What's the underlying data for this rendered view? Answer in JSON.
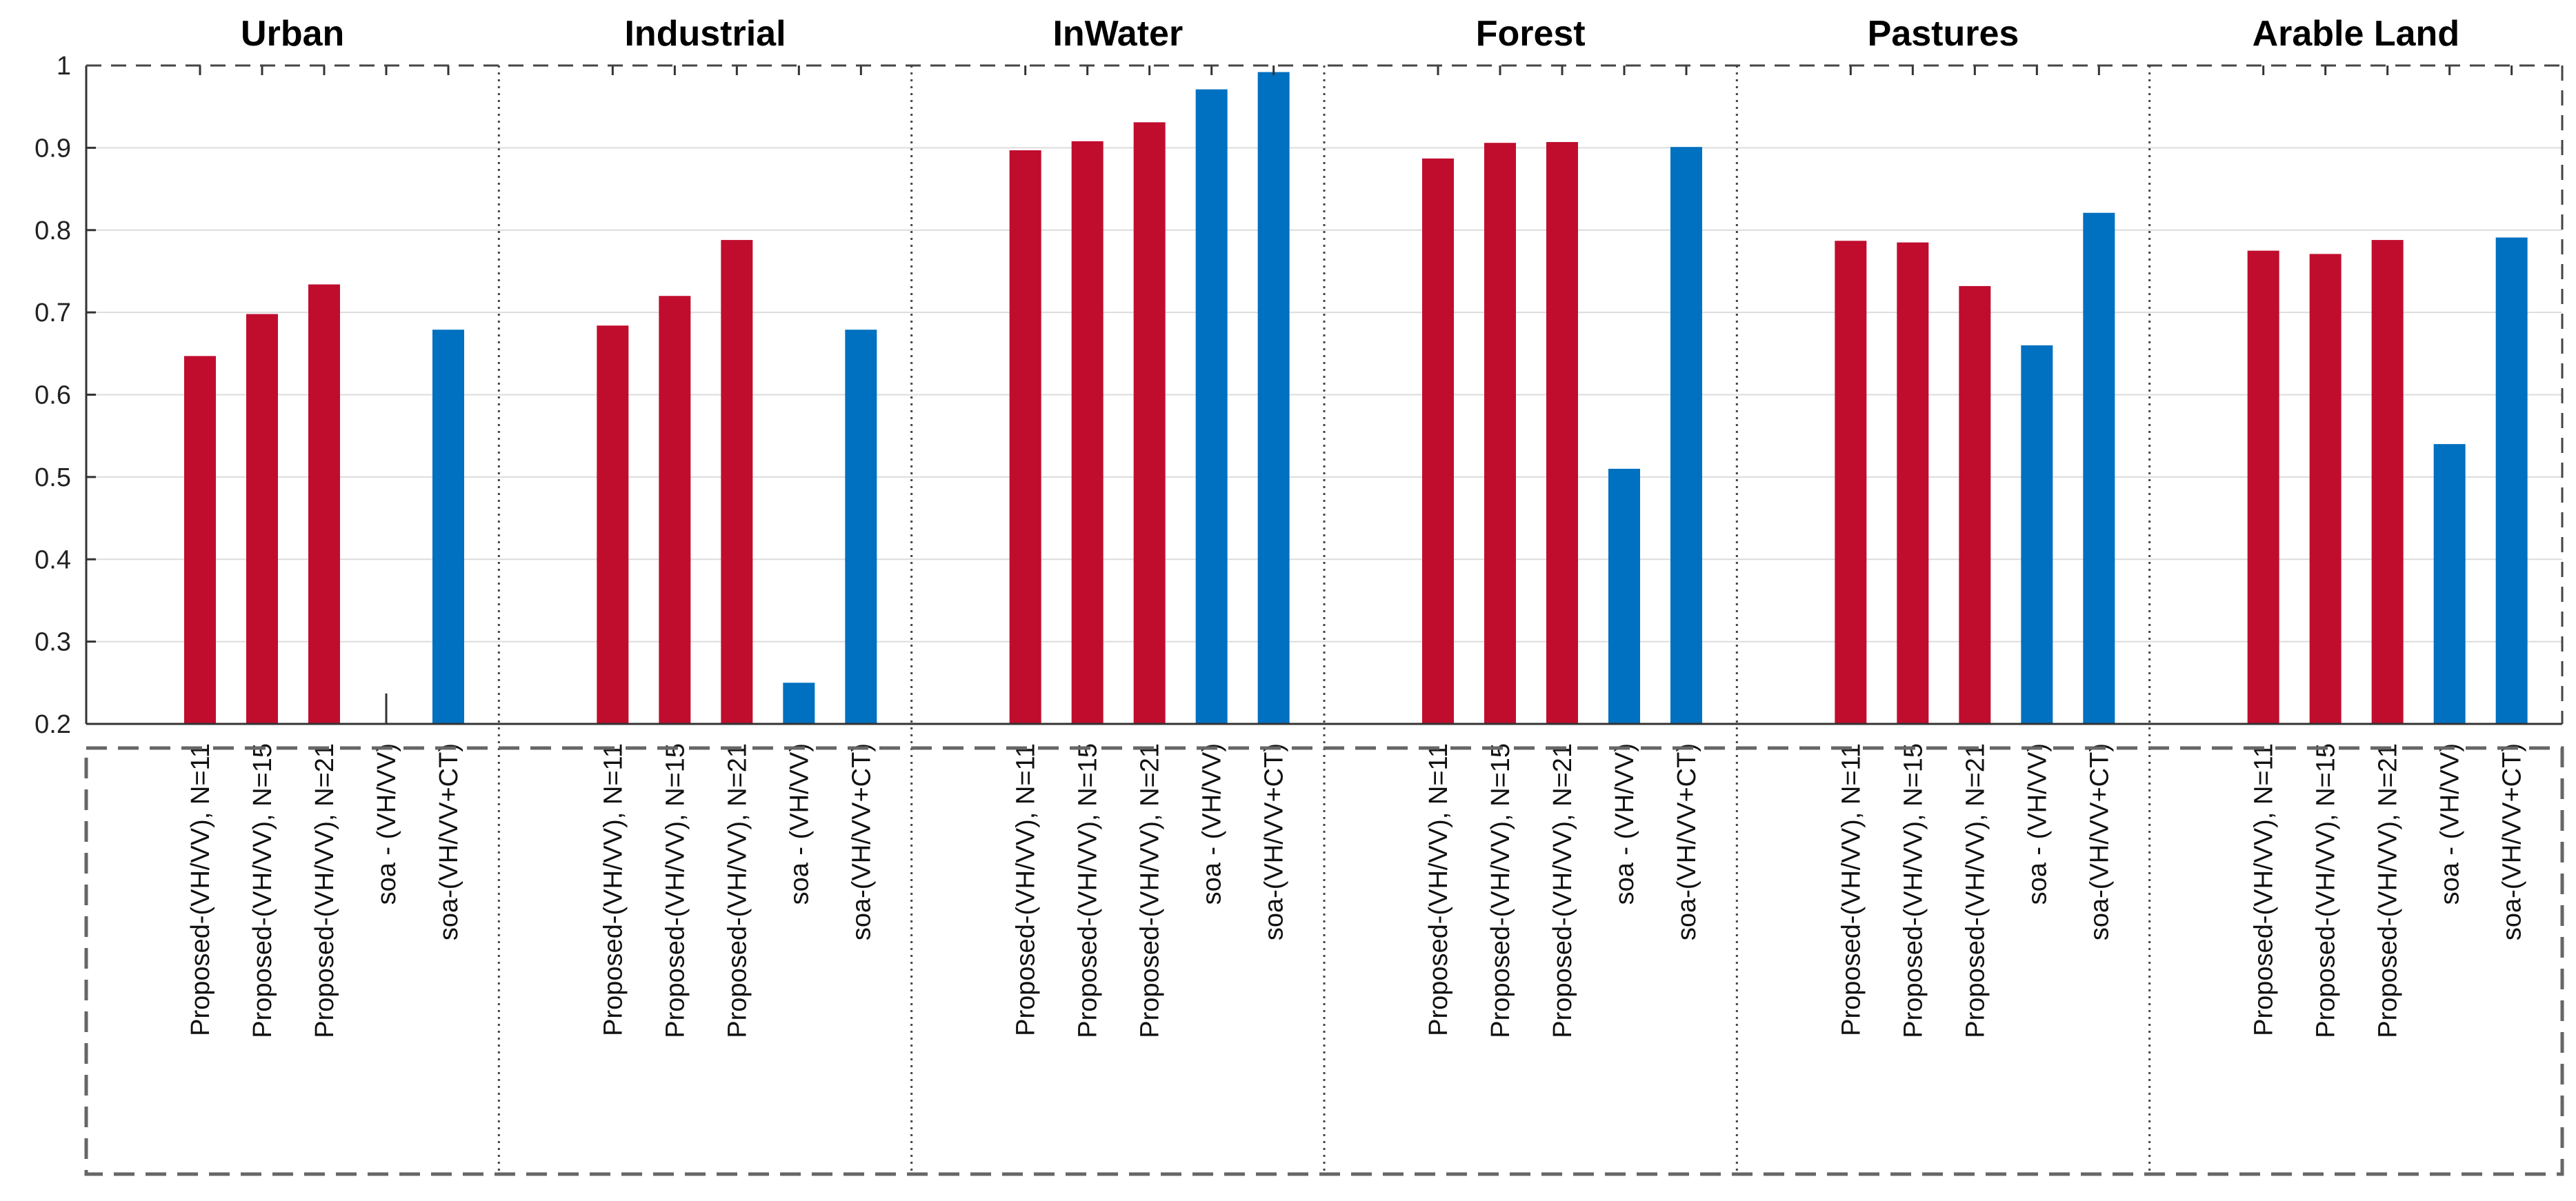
{
  "chart_data": {
    "type": "bar",
    "title": "",
    "xlabel": "",
    "ylabel": "",
    "ylim": [
      0.2,
      1.0
    ],
    "yticks": [
      0.2,
      0.3,
      0.4,
      0.5,
      0.6,
      0.7,
      0.8,
      0.9,
      1.0
    ],
    "ytick_labels": [
      "0.2",
      "0.3",
      "0.4",
      "0.5",
      "0.6",
      "0.7",
      "0.8",
      "0.9",
      "1"
    ],
    "grid": true,
    "colors": {
      "proposed": "#c00d2e",
      "soa": "#0070c0"
    },
    "methods": [
      {
        "label": "Proposed-(VH/VV), N=11",
        "family": "proposed"
      },
      {
        "label": "Proposed-(VH/VV), N=15",
        "family": "proposed"
      },
      {
        "label": "Proposed-(VH/VV), N=21",
        "family": "proposed"
      },
      {
        "label": "soa - (VH/VV)",
        "family": "soa"
      },
      {
        "label": "soa-(VH/VV+CT)",
        "family": "soa"
      }
    ],
    "groups": [
      {
        "name": "Urban",
        "values": [
          0.647,
          0.698,
          0.734,
          0.237,
          0.679
        ]
      },
      {
        "name": "Industrial",
        "values": [
          0.684,
          0.72,
          0.788,
          0.25,
          0.679
        ]
      },
      {
        "name": "InWater",
        "values": [
          0.897,
          0.908,
          0.931,
          0.971,
          0.992
        ]
      },
      {
        "name": "Forest",
        "values": [
          0.887,
          0.906,
          0.907,
          0.51,
          0.901
        ]
      },
      {
        "name": "Pastures",
        "values": [
          0.787,
          0.785,
          0.732,
          0.66,
          0.821
        ]
      },
      {
        "name": "Arable Land",
        "values": [
          0.775,
          0.771,
          0.788,
          0.54,
          0.791
        ]
      }
    ]
  }
}
